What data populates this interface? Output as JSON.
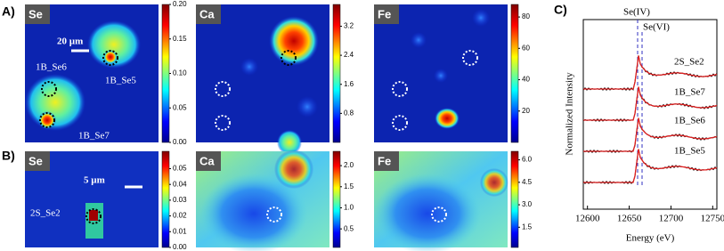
{
  "panel_labels": [
    "A)",
    "B)",
    "C)"
  ],
  "maps": [
    {
      "element": "Se",
      "scale_lim": [
        0,
        0.2
      ],
      "scale_ticks": [
        {
          "value": 0,
          "label": "0.00"
        },
        {
          "value": 0.05,
          "label": "0.05"
        },
        {
          "value": 0.1,
          "label": "0.10"
        },
        {
          "value": 0.15,
          "label": "0.15"
        },
        {
          "value": 0.2,
          "label": "0.20"
        }
      ],
      "annotations": [
        "20 µm",
        "1B_Se6",
        "1B_Se5",
        "1B_Se7"
      ]
    },
    {
      "element": "Ca",
      "scale_lim": [
        0,
        3.8
      ],
      "scale_ticks": [
        0.8,
        1.6,
        2.4,
        3.2
      ]
    },
    {
      "element": "Fe",
      "scale_lim": [
        0,
        88
      ],
      "scale_ticks": [
        20,
        40,
        60,
        80
      ]
    },
    {
      "element": "Se",
      "scale_lim": [
        0,
        0.061
      ],
      "scale_ticks": [
        {
          "value": 0,
          "label": "0.00"
        },
        0.01,
        0.02,
        0.03,
        0.04,
        0.05
      ],
      "annotations": [
        "5 µm",
        "2S_Se2"
      ]
    },
    {
      "element": "Ca",
      "scale_lim": [
        0.06,
        2.34
      ],
      "scale_ticks": [
        0.5,
        {
          "value": 1,
          "label": "1.0"
        },
        1.5,
        {
          "value": 2,
          "label": "2.0"
        }
      ]
    },
    {
      "element": "Fe",
      "scale_lim": [
        0.15,
        6.57
      ],
      "scale_ticks": [
        1.5,
        {
          "value": 3,
          "label": "3.0"
        },
        4.5,
        {
          "value": 6,
          "label": "6.0"
        }
      ]
    }
  ],
  "spectrum": {
    "x_label": "Energy (eV)",
    "y_label": "Normalized Intensity",
    "xlim": [
      12595,
      12755
    ],
    "xticks": [
      12600,
      12650,
      12700,
      12750
    ],
    "annotations": [
      "Se(IV)",
      "Se(VI)"
    ],
    "series_names": [
      "2S_Se2",
      "1B_Se7",
      "1B_Se6",
      "1B_Se5"
    ]
  }
}
